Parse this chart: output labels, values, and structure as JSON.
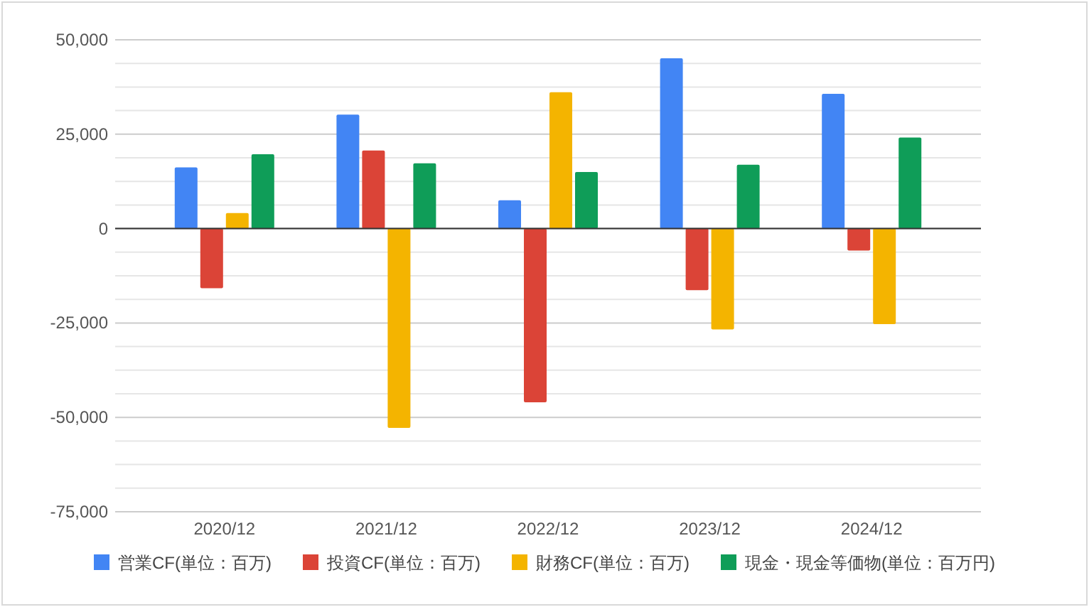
{
  "chart_data": {
    "type": "bar",
    "categories": [
      "2020/12",
      "2021/12",
      "2022/12",
      "2023/12",
      "2024/12"
    ],
    "series": [
      {
        "name": "営業CF(単位：百万)",
        "color": "#4285f4",
        "values": [
          16200,
          30200,
          7500,
          45100,
          35700
        ]
      },
      {
        "name": "投資CF(単位：百万)",
        "color": "#db4437",
        "values": [
          -15800,
          20700,
          -46000,
          -16300,
          -5800
        ]
      },
      {
        "name": "財務CF(単位：百万)",
        "color": "#f4b400",
        "values": [
          4100,
          -52800,
          36100,
          -26700,
          -25300
        ]
      },
      {
        "name": "現金・現金等価物(単位：百万円)",
        "color": "#0f9d58",
        "values": [
          19700,
          17300,
          15000,
          16900,
          24100
        ]
      }
    ],
    "ylim": [
      -75000,
      50000
    ],
    "yticks": [
      {
        "value": -75000,
        "label": "-75,000"
      },
      {
        "value": -68750,
        "label": null
      },
      {
        "value": -62500,
        "label": null
      },
      {
        "value": -56250,
        "label": null
      },
      {
        "value": -50000,
        "label": "-50,000"
      },
      {
        "value": -43750,
        "label": null
      },
      {
        "value": -37500,
        "label": null
      },
      {
        "value": -31250,
        "label": null
      },
      {
        "value": -25000,
        "label": "-25,000"
      },
      {
        "value": -18750,
        "label": null
      },
      {
        "value": -12500,
        "label": null
      },
      {
        "value": -6250,
        "label": null
      },
      0,
      {
        "value": 6250,
        "label": null
      },
      {
        "value": 12500,
        "label": null
      },
      {
        "value": 18750,
        "label": null
      },
      {
        "value": 25000,
        "label": "25,000"
      },
      {
        "value": 31250,
        "label": null
      },
      {
        "value": 37500,
        "label": null
      },
      {
        "value": 43750,
        "label": null
      },
      {
        "value": 50000,
        "label": "50,000"
      }
    ],
    "grid": true,
    "legend": "bottom"
  }
}
